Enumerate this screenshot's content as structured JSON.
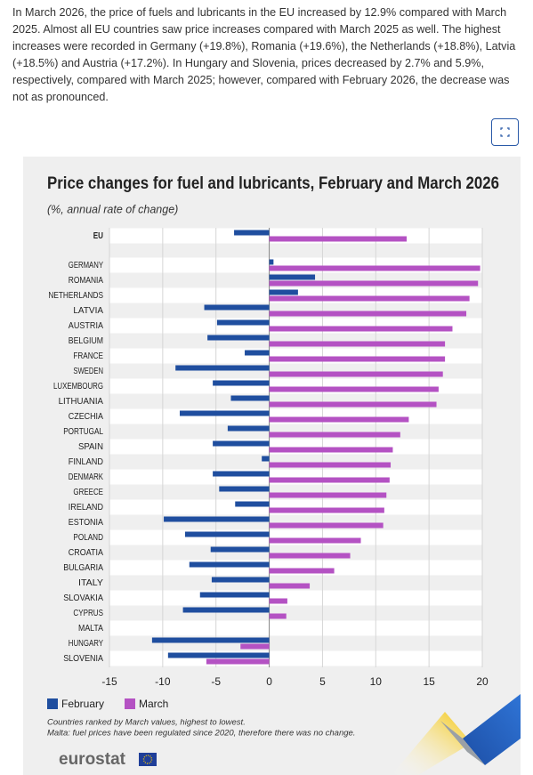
{
  "intro": "In March 2026, the price of fuels and lubricants in the EU increased by 12.9% compared with March 2025. Almost all EU countries saw price increases compared with March 2025 as well. The highest increases were recorded in Germany (+19.8%), Romania (+19.6%), the Netherlands (+18.8%), Latvia (+18.5%) and Austria (+17.2%). In Hungary and Slovenia, prices decreased by 2.7% and 5.9%, respectively, compared with March 2025; however, compared with February 2026, the decrease was not as pronounced.",
  "chart_data": {
    "type": "bar",
    "orientation": "horizontal",
    "title": "Price changes for fuel and lubricants, February and March 2026",
    "subtitle": "(%, annual rate of change)",
    "categories": [
      "EU",
      "GERMANY",
      "ROMANIA",
      "NETHERLANDS",
      "LATVIA",
      "AUSTRIA",
      "BELGIUM",
      "FRANCE",
      "SWEDEN",
      "LUXEMBOURG",
      "LITHUANIA",
      "CZECHIA",
      "PORTUGAL",
      "SPAIN",
      "FINLAND",
      "DENMARK",
      "GREECE",
      "IRELAND",
      "ESTONIA",
      "POLAND",
      "CROATIA",
      "BULGARIA",
      "ITALY",
      "SLOVAKIA",
      "CYPRUS",
      "MALTA",
      "HUNGARY",
      "SLOVENIA"
    ],
    "series": [
      {
        "name": "February",
        "color": "#1f4e9f",
        "values": [
          -3.3,
          0.4,
          4.3,
          2.7,
          -6.1,
          -4.9,
          -5.8,
          -2.3,
          -8.8,
          -5.3,
          -3.6,
          -8.4,
          -3.9,
          -5.3,
          -0.7,
          -5.3,
          -4.7,
          -3.2,
          -9.9,
          -7.9,
          -5.5,
          -7.5,
          -5.4,
          -6.5,
          -8.1,
          0,
          -11.0,
          -9.5
        ]
      },
      {
        "name": "March",
        "color": "#b452c3",
        "values": [
          12.9,
          19.8,
          19.6,
          18.8,
          18.5,
          17.2,
          16.5,
          16.5,
          16.3,
          15.9,
          15.7,
          13.1,
          12.3,
          11.6,
          11.4,
          11.3,
          11.0,
          10.8,
          10.7,
          8.6,
          7.6,
          6.1,
          3.8,
          1.7,
          1.6,
          0,
          -2.7,
          -5.9
        ]
      }
    ],
    "xlim": [
      -15,
      20
    ],
    "xticks": [
      -15,
      -10,
      -5,
      0,
      5,
      10,
      15,
      20
    ],
    "grid": true,
    "legend": "bottom-left",
    "notes": [
      "Countries ranked by March values, highest to lowest.",
      "Malta: fuel prices have been regulated since 2020, therefore there was no change."
    ]
  },
  "logo": "eurostat"
}
